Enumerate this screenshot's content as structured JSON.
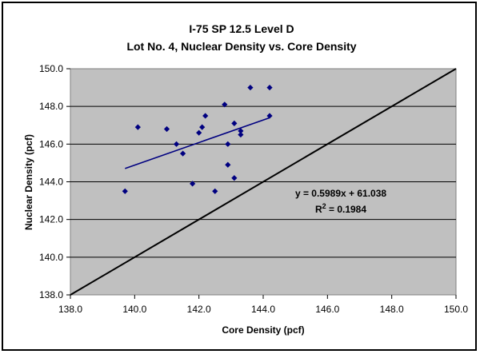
{
  "chart_data": {
    "type": "scatter",
    "title": "I-75 SP 12.5 Level D",
    "subtitle": "Lot No. 4, Nuclear Density vs. Core Density",
    "xlabel": "Core Density (pcf)",
    "ylabel": "Nuclear Density (pcf)",
    "xlim": [
      138.0,
      150.0
    ],
    "ylim": [
      138.0,
      150.0
    ],
    "x_ticks": [
      "138.0",
      "140.0",
      "142.0",
      "144.0",
      "146.0",
      "148.0",
      "150.0"
    ],
    "y_ticks": [
      "138.0",
      "140.0",
      "142.0",
      "144.0",
      "146.0",
      "148.0",
      "150.0"
    ],
    "grid": "horizontal",
    "plot_background": "#c0c0c0",
    "marker_color": "#000080",
    "trendline_color": "#000080",
    "equality_line_color": "#000000",
    "points": [
      {
        "x": 139.7,
        "y": 143.5
      },
      {
        "x": 140.1,
        "y": 146.9
      },
      {
        "x": 141.0,
        "y": 146.8
      },
      {
        "x": 141.3,
        "y": 146.0
      },
      {
        "x": 141.5,
        "y": 145.5
      },
      {
        "x": 141.8,
        "y": 143.9
      },
      {
        "x": 142.0,
        "y": 146.6
      },
      {
        "x": 142.1,
        "y": 146.9
      },
      {
        "x": 142.2,
        "y": 147.5
      },
      {
        "x": 142.5,
        "y": 143.5
      },
      {
        "x": 142.8,
        "y": 148.1
      },
      {
        "x": 142.9,
        "y": 146.0
      },
      {
        "x": 142.9,
        "y": 144.9
      },
      {
        "x": 143.1,
        "y": 147.1
      },
      {
        "x": 143.1,
        "y": 144.2
      },
      {
        "x": 143.3,
        "y": 146.5
      },
      {
        "x": 143.3,
        "y": 146.7
      },
      {
        "x": 143.6,
        "y": 149.0
      },
      {
        "x": 144.2,
        "y": 149.0
      },
      {
        "x": 144.2,
        "y": 147.5
      }
    ],
    "trendline": {
      "slope": 0.5989,
      "intercept": 61.038,
      "x_range": [
        139.7,
        144.2
      ]
    },
    "equality_line": {
      "x_range": [
        138.0,
        150.0
      ]
    },
    "annotation": {
      "equation": "y = 0.5989x + 61.038",
      "r2_prefix": "R",
      "r2_sup": "2",
      "r2_value": " = 0.1984"
    }
  }
}
